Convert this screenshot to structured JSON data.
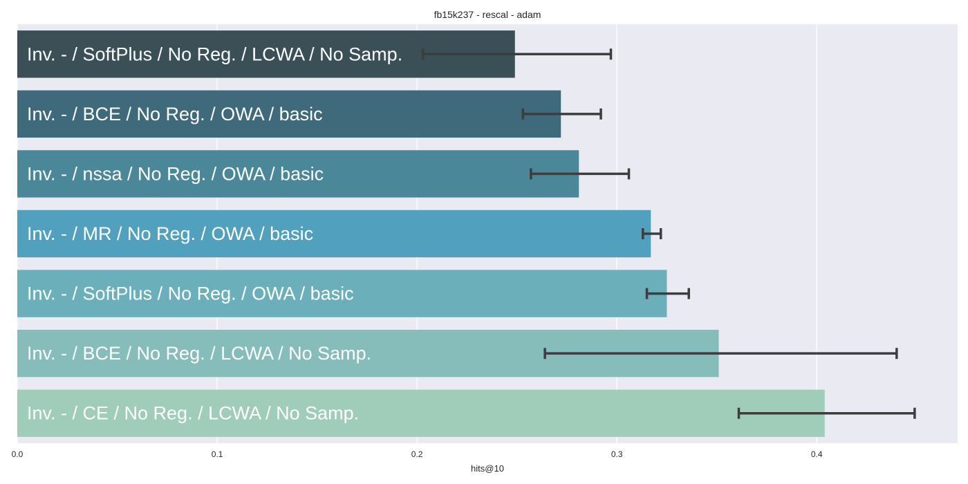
{
  "chart_data": {
    "type": "bar",
    "orientation": "horizontal",
    "title": "fb15k237 - rescal - adam",
    "xlabel": "hits@10",
    "ylabel": "",
    "xlim": [
      0,
      0.4705
    ],
    "xticks": [
      0.0,
      0.1,
      0.2,
      0.3,
      0.4
    ],
    "xtick_labels": [
      "0.0",
      "0.1",
      "0.2",
      "0.3",
      "0.4"
    ],
    "grid": true,
    "categories": [
      "Inv. - / SoftPlus / No Reg. / LCWA / No Samp.",
      "Inv. - / BCE / No Reg. / OWA / basic",
      "Inv. - / nssa / No Reg. / OWA / basic",
      "Inv. - / MR / No Reg. / OWA / basic",
      "Inv. - / SoftPlus / No Reg. / OWA / basic",
      "Inv. - / BCE / No Reg. / LCWA / No Samp.",
      "Inv. - / CE / No Reg. / LCWA / No Samp."
    ],
    "values": [
      0.249,
      0.272,
      0.281,
      0.317,
      0.325,
      0.351,
      0.404
    ],
    "error_low": [
      0.203,
      0.253,
      0.257,
      0.313,
      0.315,
      0.264,
      0.361
    ],
    "error_high": [
      0.297,
      0.292,
      0.306,
      0.322,
      0.336,
      0.44,
      0.449
    ],
    "colors": [
      "#3b4f57",
      "#3f6a7b",
      "#4a8799",
      "#50a0be",
      "#6aafba",
      "#86bdba",
      "#a0cdb9"
    ],
    "background_color": "#eaeaf2",
    "errorbar_color": "#3d3d3d"
  }
}
